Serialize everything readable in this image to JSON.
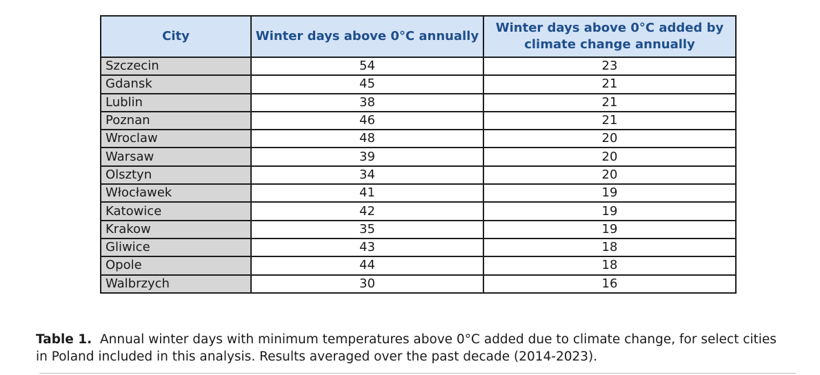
{
  "table": {
    "headers": [
      "City",
      "Winter days above 0°C annually",
      "Winter days above 0°C added by climate change annually"
    ],
    "rows": [
      [
        "Szczecin",
        "54",
        "23"
      ],
      [
        "Gdansk",
        "45",
        "21"
      ],
      [
        "Lublin",
        "38",
        "21"
      ],
      [
        "Poznan",
        "46",
        "21"
      ],
      [
        "Wroclaw",
        "48",
        "20"
      ],
      [
        "Warsaw",
        "39",
        "20"
      ],
      [
        "Olsztyn",
        "34",
        "20"
      ],
      [
        "Włocławek",
        "41",
        "19"
      ],
      [
        "Katowice",
        "42",
        "19"
      ],
      [
        "Krakow",
        "35",
        "19"
      ],
      [
        "Gliwice",
        "43",
        "18"
      ],
      [
        "Opole",
        "44",
        "18"
      ],
      [
        "Walbrzych",
        "30",
        "16"
      ]
    ]
  },
  "caption": {
    "label": "Table 1.",
    "text": "Annual winter days with minimum temperatures above 0°C added due to climate change, for select cities in Poland included in this analysis. Results averaged over the past decade (2014-2023)."
  },
  "colors": {
    "header_background": "#d4e4f6",
    "header_text": "#1f4e8c",
    "city_column_background": "#d6d6d6",
    "border": "#1c1c1c"
  }
}
